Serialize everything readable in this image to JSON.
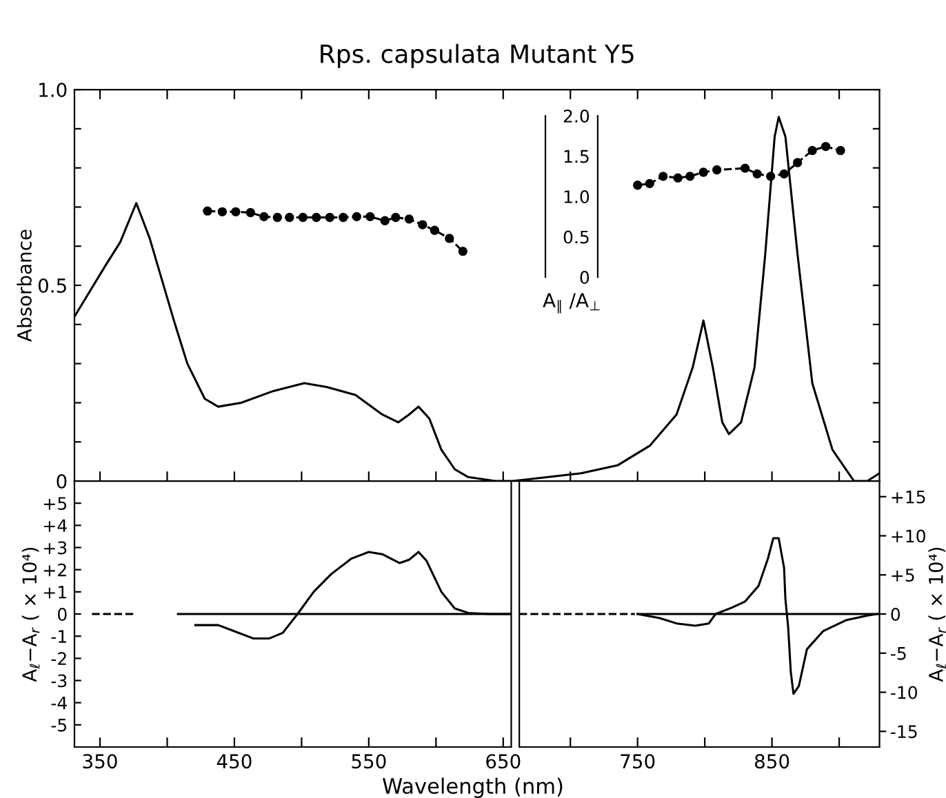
{
  "chart_data": [
    {
      "type": "line",
      "title": "Rps. capsulata Mutant Y5",
      "ylabel": "Absorbance",
      "y2label": "A$_{∥}$ /A$_{⊥}$",
      "xlim": [
        331,
        930
      ],
      "ylim": [
        0,
        1.0
      ],
      "y2lim": [
        0,
        2.0
      ],
      "tick_labels": "y",
      "xticks": [
        350,
        {
          "value": 400,
          "label": null
        },
        450,
        {
          "value": 500,
          "label": null
        },
        550,
        {
          "value": 600,
          "label": null
        },
        650,
        {
          "value": 700,
          "label": null
        },
        750,
        {
          "value": 800,
          "label": null
        },
        850,
        {
          "value": 900,
          "label": null
        }
      ],
      "yticks": [
        0,
        {
          "value": 0.1,
          "label": null
        },
        {
          "value": 0.2,
          "label": null
        },
        {
          "value": 0.3,
          "label": null
        },
        {
          "value": 0.4,
          "label": null
        },
        0.5,
        {
          "value": 0.6,
          "label": null
        },
        {
          "value": 0.7,
          "label": null
        },
        {
          "value": 0.8,
          "label": null
        },
        {
          "value": 0.9,
          "label": null
        },
        {
          "value": 1.0,
          "label": "1.0"
        }
      ],
      "y2ticks": [
        0,
        0.5,
        {
          "value": 1.0,
          "label": "1.0"
        },
        1.5,
        {
          "value": 2.0,
          "label": "2.0"
        }
      ],
      "grid": false,
      "legend": false,
      "series": [
        {
          "color": "#000000",
          "line_style": "solid",
          "marker": "none",
          "x": [
            331,
            354,
            365,
            377,
            387,
            393,
            405,
            415,
            428,
            438,
            455,
            479,
            502,
            519,
            540,
            560,
            572,
            580,
            587,
            595,
            604,
            614,
            624,
            644,
            657,
            708,
            735,
            759,
            779,
            791,
            799,
            806,
            813,
            818,
            827,
            837,
            845,
            852,
            855,
            860,
            869,
            880,
            895,
            911,
            921,
            930
          ],
          "values": [
            0.42,
            0.55,
            0.61,
            0.71,
            0.62,
            0.55,
            0.41,
            0.3,
            0.21,
            0.19,
            0.2,
            0.23,
            0.25,
            0.24,
            0.22,
            0.17,
            0.15,
            0.17,
            0.19,
            0.16,
            0.08,
            0.03,
            0.01,
            0.0,
            0.0,
            0.02,
            0.04,
            0.09,
            0.17,
            0.29,
            0.41,
            0.29,
            0.15,
            0.12,
            0.15,
            0.29,
            0.58,
            0.88,
            0.93,
            0.88,
            0.58,
            0.25,
            0.08,
            0.0,
            0.0,
            0.02
          ]
        },
        {
          "color": "#000000",
          "axis": "y2",
          "line_style": "dashed",
          "marker": "circle",
          "x": [
            430,
            441,
            451,
            462,
            472,
            482,
            491,
            501,
            511,
            521,
            531,
            541,
            551,
            562,
            570,
            580,
            590,
            599,
            610,
            620
          ],
          "values": [
            0.82,
            0.81,
            0.81,
            0.8,
            0.75,
            0.74,
            0.74,
            0.74,
            0.74,
            0.74,
            0.74,
            0.75,
            0.75,
            0.7,
            0.74,
            0.72,
            0.65,
            0.58,
            0.48,
            0.32
          ]
        },
        {
          "color": "#000000",
          "axis": "y2",
          "line_style": "dashed",
          "marker": "circle",
          "x": [
            750,
            759,
            769,
            780,
            789,
            799,
            809,
            830,
            839,
            849,
            859,
            869,
            880,
            890,
            901
          ],
          "values": [
            1.14,
            1.16,
            1.25,
            1.23,
            1.25,
            1.3,
            1.33,
            1.35,
            1.28,
            1.25,
            1.28,
            1.42,
            1.57,
            1.62,
            1.57
          ]
        }
      ]
    },
    {
      "type": "line",
      "xlabel": "Wavelength (nm)",
      "ylabel": "A$_{ℓ}$−A$_{r}$ ( × 10⁴)",
      "xlim": [
        331,
        656
      ],
      "ylim": [
        -6,
        6
      ],
      "xticks": [
        350,
        {
          "value": 400,
          "label": null
        },
        450,
        {
          "value": 500,
          "label": null
        },
        550,
        {
          "value": 600,
          "label": null
        },
        650
      ],
      "yticks": [
        {
          "value": -5,
          "label": "-5"
        },
        {
          "value": -4,
          "label": "-4"
        },
        {
          "value": -3,
          "label": "-3"
        },
        {
          "value": -2,
          "label": "-2"
        },
        {
          "value": -1,
          "label": "-1"
        },
        0,
        {
          "value": 1,
          "label": "+1"
        },
        {
          "value": 2,
          "label": "+2"
        },
        {
          "value": 3,
          "label": "+3"
        },
        {
          "value": 4,
          "label": "+4"
        },
        {
          "value": 5,
          "label": "+5"
        }
      ],
      "grid": false,
      "legend": false,
      "series": [
        {
          "color": "#000000",
          "line_style": "dashed",
          "marker": "none",
          "x": [
            344,
            377
          ],
          "values": [
            0,
            0
          ]
        },
        {
          "color": "#000000",
          "line_style": "solid",
          "marker": "none",
          "x": [
            408,
            656
          ],
          "values": [
            0,
            0
          ]
        },
        {
          "color": "#000000",
          "line_style": "solid",
          "marker": "none",
          "x": [
            421,
            438,
            451,
            464,
            476,
            486,
            497,
            509,
            522,
            537,
            550,
            560,
            573,
            580,
            587,
            593,
            604,
            614,
            624,
            640,
            655
          ],
          "values": [
            -0.5,
            -0.5,
            -0.8,
            -1.1,
            -1.1,
            -0.85,
            0,
            1.0,
            1.8,
            2.5,
            2.8,
            2.7,
            2.3,
            2.45,
            2.8,
            2.4,
            1.0,
            0.25,
            0.05,
            0,
            0
          ]
        }
      ]
    },
    {
      "type": "line",
      "ylabel": "A$_{ℓ}$−A$_{r}$ ( × 10⁴)",
      "xlim": [
        662,
        930
      ],
      "ylim": [
        -17,
        17
      ],
      "xticks": [
        {
          "value": 700,
          "label": null
        },
        750,
        {
          "value": 800,
          "label": null
        },
        850,
        {
          "value": 900,
          "label": null
        }
      ],
      "yticks": [
        {
          "value": -15,
          "label": "-15"
        },
        {
          "value": -10,
          "label": "-10"
        },
        {
          "value": -5,
          "label": "-5"
        },
        0,
        {
          "value": 5,
          "label": "+5"
        },
        {
          "value": 10,
          "label": "+10"
        },
        {
          "value": 15,
          "label": "+15"
        }
      ],
      "grid": false,
      "legend": false,
      "series": [
        {
          "color": "#000000",
          "line_style": "dashed",
          "marker": "none",
          "x": [
            662,
            748
          ],
          "values": [
            0,
            0
          ]
        },
        {
          "color": "#000000",
          "line_style": "solid",
          "marker": "none",
          "x": [
            750,
            930
          ],
          "values": [
            0,
            0
          ]
        },
        {
          "color": "#000000",
          "line_style": "solid",
          "marker": "none",
          "x": [
            750,
            766,
            779,
            793,
            803,
            808,
            820,
            830,
            840,
            847,
            851,
            855,
            859,
            860,
            862,
            864,
            866,
            870,
            876,
            888,
            905,
            921,
            928
          ],
          "values": [
            0,
            -0.5,
            -1.2,
            -1.5,
            -1.2,
            0,
            0.8,
            1.6,
            3.6,
            7.1,
            9.7,
            9.7,
            5.9,
            1.9,
            -1.6,
            -7.4,
            -10.2,
            -9.2,
            -4.5,
            -2.2,
            -0.8,
            -0.2,
            0
          ]
        }
      ]
    }
  ]
}
